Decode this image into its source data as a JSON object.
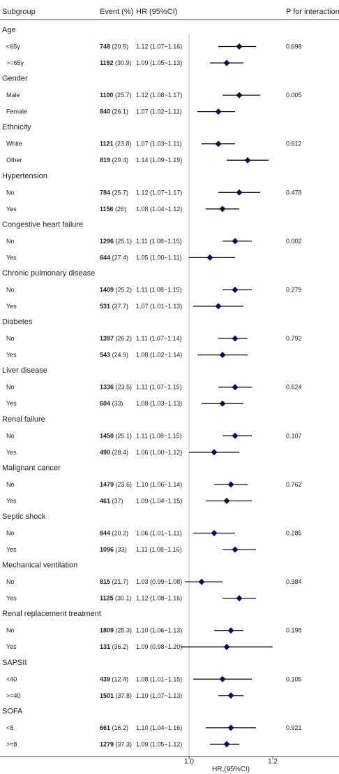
{
  "chart_data": {
    "type": "forest",
    "title": "",
    "columns": {
      "subgroup": "Subgroup",
      "event": "Event (%)",
      "hr": "HR (95%CI)",
      "p": "P for interaction"
    },
    "xlabel": "HR,(95%CI)",
    "xlim": [
      0.99,
      1.22
    ],
    "reference_line": 1.0,
    "x_ticks": [
      {
        "value": 1.0,
        "label": "1.0"
      },
      {
        "value": 1.2,
        "label": "1.2"
      }
    ],
    "marker_color": "#0d0d4a",
    "groups": [
      {
        "name": "Age",
        "p": "0.698",
        "rows": [
          {
            "label": "<65y",
            "n": "748",
            "pct": " (20.5)",
            "hr_text": "1.12 (1.07~1.16)",
            "hr": 1.12,
            "lo": 1.07,
            "hi": 1.16
          },
          {
            "label": ">=65y",
            "n": "1192",
            "pct": " (30.9)",
            "hr_text": "1.09 (1.05~1.13)",
            "hr": 1.09,
            "lo": 1.05,
            "hi": 1.13
          }
        ]
      },
      {
        "name": "Gender",
        "p": "0.005",
        "rows": [
          {
            "label": "Male",
            "n": "1100",
            "pct": " (25.7)",
            "hr_text": "1.12 (1.08~1.17)",
            "hr": 1.12,
            "lo": 1.08,
            "hi": 1.17
          },
          {
            "label": "Female",
            "n": "840",
            "pct": " (26.1)",
            "hr_text": "1.07 (1.02~1.11)",
            "hr": 1.07,
            "lo": 1.02,
            "hi": 1.11
          }
        ]
      },
      {
        "name": "Ethnicity",
        "p": "0.612",
        "rows": [
          {
            "label": "White",
            "n": "1121",
            "pct": " (23.8)",
            "hr_text": "1.07 (1.03~1.11)",
            "hr": 1.07,
            "lo": 1.03,
            "hi": 1.11
          },
          {
            "label": "Other",
            "n": "819",
            "pct": " (29.4)",
            "hr_text": "1.14 (1.09~1.19)",
            "hr": 1.14,
            "lo": 1.09,
            "hi": 1.19
          }
        ]
      },
      {
        "name": "Hypertension",
        "p": "0.478",
        "rows": [
          {
            "label": "No",
            "n": "784",
            "pct": " (25.7)",
            "hr_text": "1.12 (1.07~1.17)",
            "hr": 1.12,
            "lo": 1.07,
            "hi": 1.17
          },
          {
            "label": "Yes",
            "n": "1156",
            "pct": " (26)",
            "hr_text": "1.08 (1.04~1.12)",
            "hr": 1.08,
            "lo": 1.04,
            "hi": 1.12
          }
        ]
      },
      {
        "name": "Congestive heart failure",
        "p": "0.002",
        "rows": [
          {
            "label": "No",
            "n": "1296",
            "pct": " (25.1)",
            "hr_text": "1.11 (1.08~1.15)",
            "hr": 1.11,
            "lo": 1.08,
            "hi": 1.15
          },
          {
            "label": "Yes",
            "n": "644",
            "pct": " (27.4)",
            "hr_text": "1.05 (1.00~1.11)",
            "hr": 1.05,
            "lo": 1.0,
            "hi": 1.11
          }
        ]
      },
      {
        "name": "Chronic pulmonary disease",
        "p": "0.279",
        "rows": [
          {
            "label": "No",
            "n": "1409",
            "pct": " (25.2)",
            "hr_text": "1.11 (1.08~1.15)",
            "hr": 1.11,
            "lo": 1.08,
            "hi": 1.15
          },
          {
            "label": "Yes",
            "n": "531",
            "pct": " (27.7)",
            "hr_text": "1.07 (1.01~1.13)",
            "hr": 1.07,
            "lo": 1.01,
            "hi": 1.13
          }
        ]
      },
      {
        "name": "Diabetes",
        "p": "0.792",
        "rows": [
          {
            "label": "No",
            "n": "1397",
            "pct": " (26.2)",
            "hr_text": "1.11 (1.07~1.14)",
            "hr": 1.11,
            "lo": 1.07,
            "hi": 1.14
          },
          {
            "label": "Yes",
            "n": "543",
            "pct": " (24.9)",
            "hr_text": "1.08 (1.02~1.14)",
            "hr": 1.08,
            "lo": 1.02,
            "hi": 1.14
          }
        ]
      },
      {
        "name": "Liver disease",
        "p": "0.624",
        "rows": [
          {
            "label": "No",
            "n": "1336",
            "pct": " (23.5)",
            "hr_text": "1.11 (1.07~1.15)",
            "hr": 1.11,
            "lo": 1.07,
            "hi": 1.15
          },
          {
            "label": "Yes",
            "n": "604",
            "pct": " (33)",
            "hr_text": "1.08 (1.03~1.13)",
            "hr": 1.08,
            "lo": 1.03,
            "hi": 1.13
          }
        ]
      },
      {
        "name": "Renal failure",
        "p": "0.107",
        "rows": [
          {
            "label": "No",
            "n": "1450",
            "pct": " (25.1)",
            "hr_text": "1.11 (1.08~1.15)",
            "hr": 1.11,
            "lo": 1.08,
            "hi": 1.15
          },
          {
            "label": "Yes",
            "n": "490",
            "pct": " (28.4)",
            "hr_text": "1.06 (1.00~1.12)",
            "hr": 1.06,
            "lo": 1.0,
            "hi": 1.12
          }
        ]
      },
      {
        "name": "Malignant cancer",
        "p": "0.762",
        "rows": [
          {
            "label": "No",
            "n": "1479",
            "pct": " (23.6)",
            "hr_text": "1.10 (1.06~1.14)",
            "hr": 1.1,
            "lo": 1.06,
            "hi": 1.14
          },
          {
            "label": "Yes",
            "n": "461",
            "pct": " (37)",
            "hr_text": "1.09 (1.04~1.15)",
            "hr": 1.09,
            "lo": 1.04,
            "hi": 1.15
          }
        ]
      },
      {
        "name": "Septic shock",
        "p": "0.285",
        "rows": [
          {
            "label": "No",
            "n": "844",
            "pct": " (20.2)",
            "hr_text": "1.06 (1.01~1.11)",
            "hr": 1.06,
            "lo": 1.01,
            "hi": 1.11
          },
          {
            "label": "Yes",
            "n": "1096",
            "pct": " (33)",
            "hr_text": "1.11 (1.08~1.16)",
            "hr": 1.11,
            "lo": 1.08,
            "hi": 1.16
          }
        ]
      },
      {
        "name": "Mechanical ventilation",
        "p": "0.384",
        "rows": [
          {
            "label": "No",
            "n": "815",
            "pct": " (21.7)",
            "hr_text": "1.03 (0.99~1.08)",
            "hr": 1.03,
            "lo": 0.99,
            "hi": 1.08
          },
          {
            "label": "Yes",
            "n": "1125",
            "pct": " (30.1)",
            "hr_text": "1.12 (1.08~1.16)",
            "hr": 1.12,
            "lo": 1.08,
            "hi": 1.16
          }
        ]
      },
      {
        "name": "Renal replacement treatment",
        "p": "0.198",
        "rows": [
          {
            "label": "No",
            "n": "1809",
            "pct": " (25.3)",
            "hr_text": "1.10 (1.06~1.13)",
            "hr": 1.1,
            "lo": 1.06,
            "hi": 1.13
          },
          {
            "label": "Yes",
            "n": "131",
            "pct": " (36.2)",
            "hr_text": "1.09 (0.98~1.20)",
            "hr": 1.09,
            "lo": 0.98,
            "hi": 1.2
          }
        ]
      },
      {
        "name": "SAPSII",
        "p": "0.105",
        "rows": [
          {
            "label": "<40",
            "n": "439",
            "pct": " (12.4)",
            "hr_text": "1.08 (1.01~1.15)",
            "hr": 1.08,
            "lo": 1.01,
            "hi": 1.15
          },
          {
            "label": ">=40",
            "n": "1501",
            "pct": " (37.8)",
            "hr_text": "1.10 (1.07~1.13)",
            "hr": 1.1,
            "lo": 1.07,
            "hi": 1.13
          }
        ]
      },
      {
        "name": "SOFA",
        "p": "0.921",
        "rows": [
          {
            "label": "<8",
            "n": "661",
            "pct": " (16.2)",
            "hr_text": "1.10 (1.04~1.16)",
            "hr": 1.1,
            "lo": 1.04,
            "hi": 1.16
          },
          {
            "label": ">=8",
            "n": "1279",
            "pct": " (37.3)",
            "hr_text": "1.09 (1.05~1.12)",
            "hr": 1.09,
            "lo": 1.05,
            "hi": 1.12
          }
        ]
      }
    ]
  }
}
